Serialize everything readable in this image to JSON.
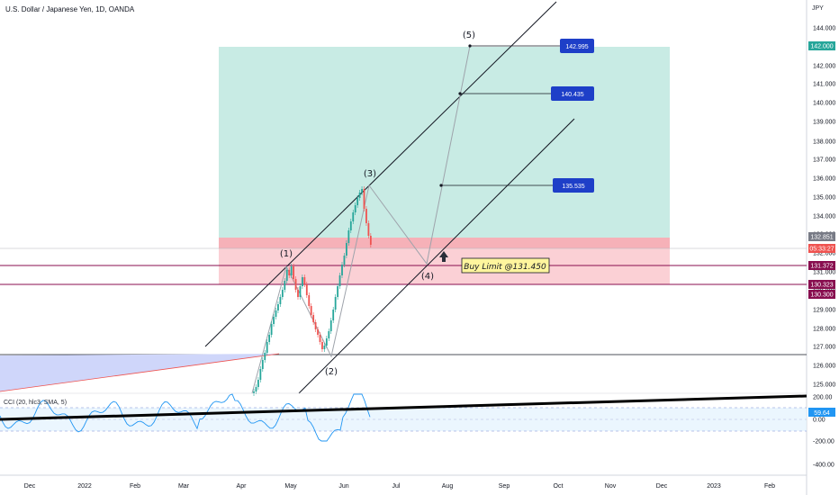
{
  "header": {
    "symbol_title": "U.S. Dollar / Japanese Yen, 1D, OANDA",
    "currency": "JPY"
  },
  "indicator": {
    "label": "CCI (20, hlc3, SMA, 5)",
    "value_badge": "59.64",
    "axis_labels": [
      "200.00",
      "0.00",
      "-200.00",
      "-400.00"
    ]
  },
  "price_axis": {
    "labels": [
      "144.000",
      "142.000",
      "141.000",
      "140.000",
      "139.000",
      "138.000",
      "137.000",
      "136.000",
      "135.000",
      "134.000",
      "133.000",
      "132.000",
      "131.000",
      "130.000",
      "129.000",
      "128.000",
      "127.000",
      "126.000",
      "125.000"
    ],
    "badges": [
      {
        "value": "142.000",
        "color": "#26a69a"
      },
      {
        "value": "132.851",
        "color": "#787b86"
      },
      {
        "value": "05:33:27",
        "color": "#ef5350"
      },
      {
        "value": "131.372",
        "color": "#880e4f"
      },
      {
        "value": "130.323",
        "color": "#880e4f"
      },
      {
        "value": "130.300",
        "color": "#880e4f"
      }
    ]
  },
  "time_axis": {
    "labels": [
      "Dec",
      "2022",
      "Feb",
      "Mar",
      "Apr",
      "May",
      "Jun",
      "Jul",
      "Aug",
      "Sep",
      "Oct",
      "Nov",
      "Dec",
      "2023",
      "Feb"
    ]
  },
  "annotations": {
    "waves": [
      "(1)",
      "(2)",
      "(3)",
      "(4)",
      "(5)"
    ],
    "targets": [
      "142.995",
      "140.435",
      "135.535"
    ],
    "buy_limit": "Buy Limit @131.450"
  },
  "colors": {
    "profit_zone": "#c8ebe4",
    "loss_zone": "#fbd0d5",
    "accent_blue": "#1e3fc8",
    "up_candle": "#26a69a",
    "down_candle": "#ef5350",
    "cci_line": "#2196f3"
  }
}
